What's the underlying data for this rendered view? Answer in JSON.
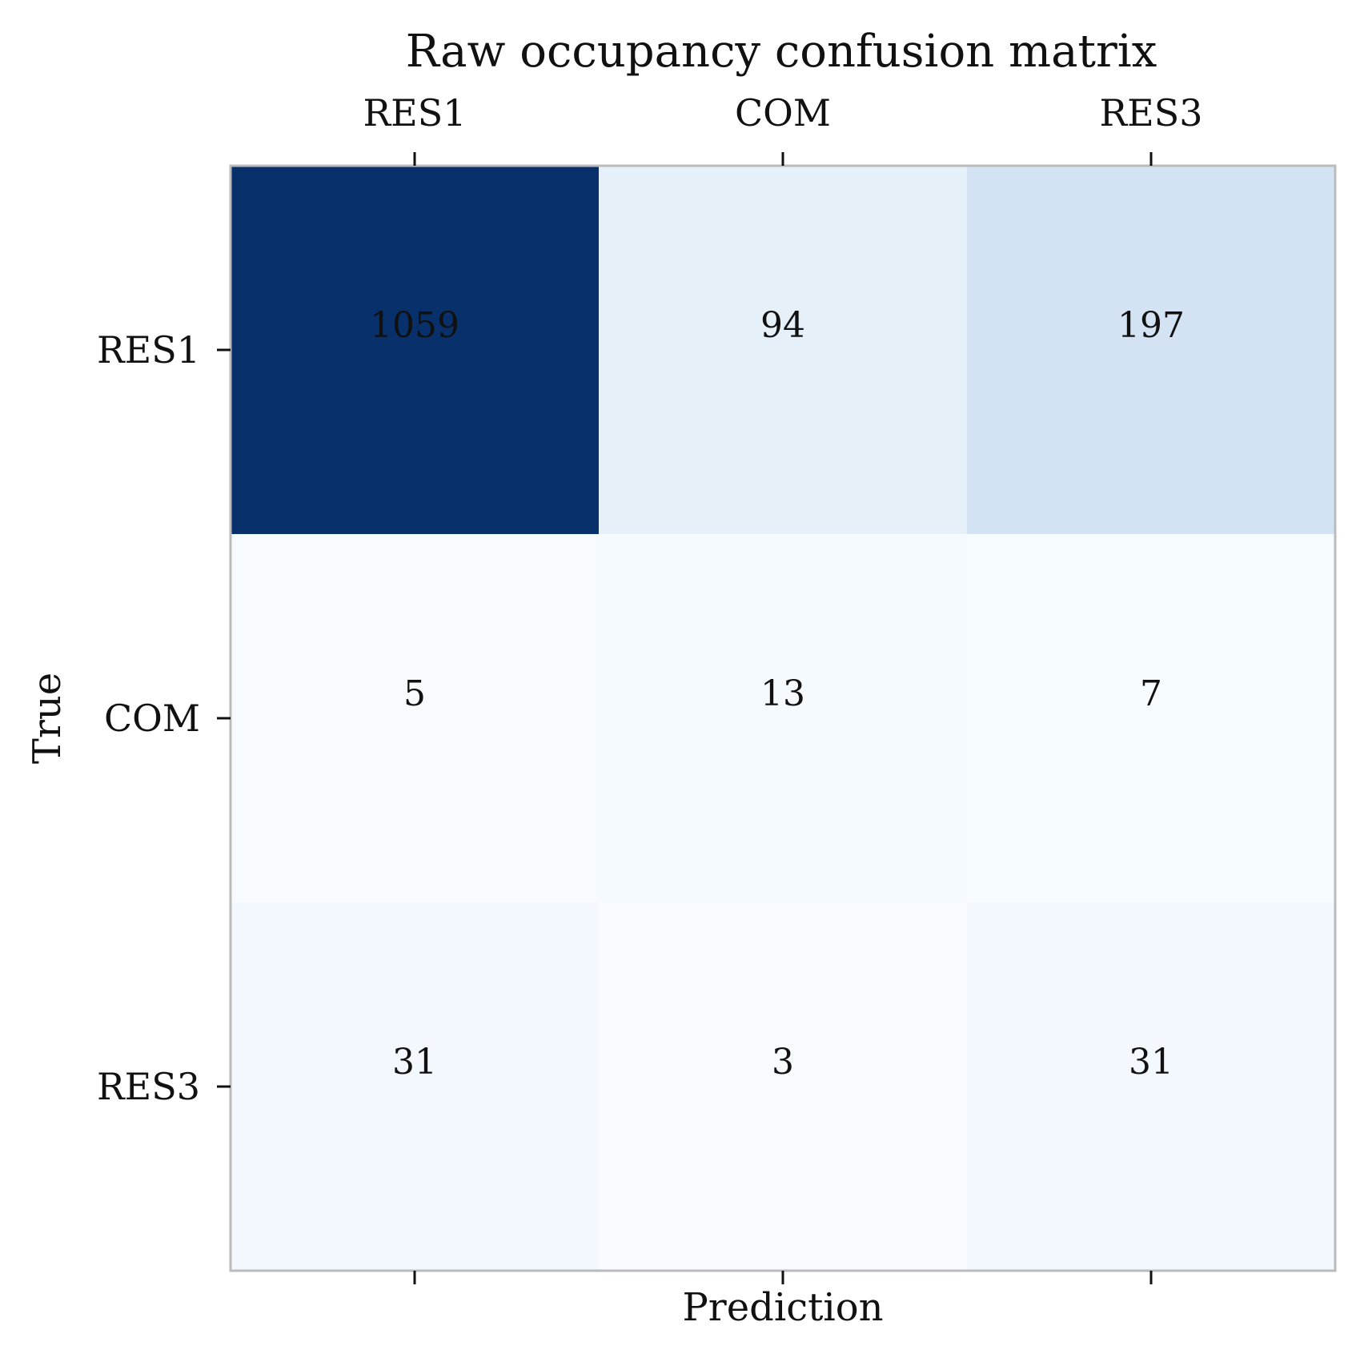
{
  "chart_data": {
    "type": "heatmap",
    "title": "Raw occupancy confusion matrix",
    "xlabel": "Prediction",
    "ylabel": "True",
    "x_categories": [
      "RES1",
      "COM",
      "RES3"
    ],
    "y_categories": [
      "RES1",
      "COM",
      "RES3"
    ],
    "values": [
      [
        1059,
        94,
        197
      ],
      [
        5,
        13,
        7
      ],
      [
        31,
        3,
        31
      ]
    ],
    "colormap": "Blues",
    "x_tick_position": "top",
    "grid": false,
    "colors": {
      "low": "#f7fbff",
      "high": "#08306b",
      "frame": "#bbbbbb",
      "text_dark": "#111111",
      "text_light": "#ffffff"
    }
  }
}
